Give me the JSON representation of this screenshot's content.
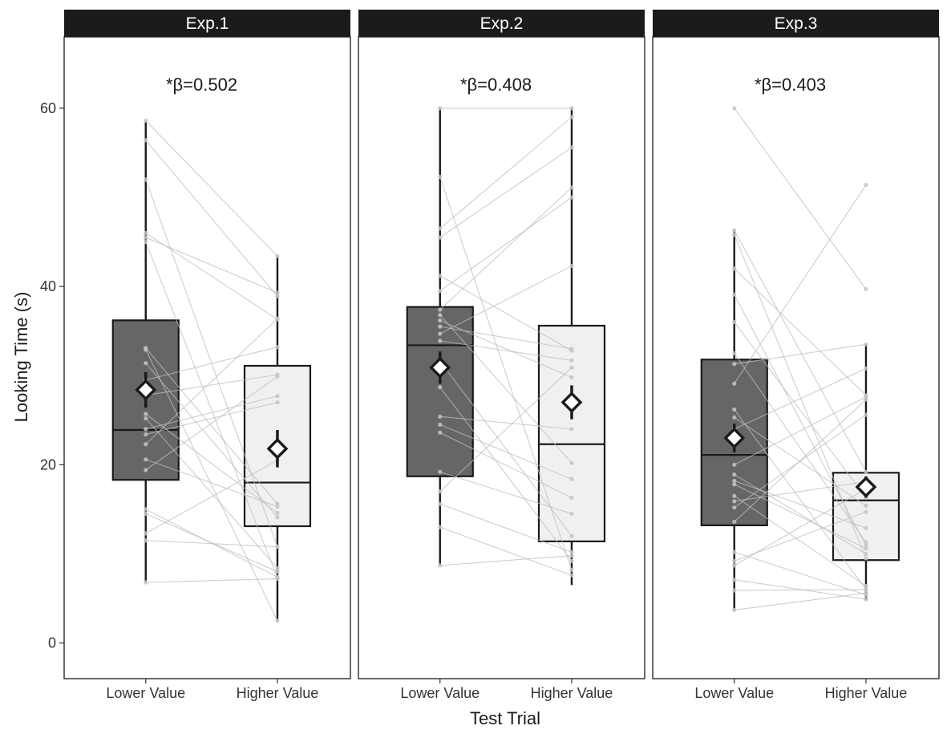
{
  "chart_data": {
    "type": "boxplot",
    "xlabel": "Test Trial",
    "ylabel": "Looking Time (s)",
    "ylim": [
      -4,
      68
    ],
    "yticks": [
      0,
      20,
      40,
      60
    ],
    "categories": [
      "Lower Value",
      "Higher Value"
    ],
    "category_fill": {
      "Lower Value": "#666666",
      "Higher Value": "#f0f0f0"
    },
    "grid": false,
    "legend": "none",
    "panels": [
      {
        "title": "Exp.1",
        "annotation": "*β=0.502",
        "boxes": [
          {
            "category": "Lower Value",
            "min": 6.8,
            "q1": 18.3,
            "median": 23.9,
            "q3": 36.2,
            "max": 58.6,
            "mean": 28.4,
            "se": 2.0
          },
          {
            "category": "Higher Value",
            "min": 2.5,
            "q1": 13.1,
            "median": 18.0,
            "q3": 31.1,
            "max": 43.4,
            "mean": 21.8,
            "se": 2.1
          }
        ],
        "pairs": [
          [
            58.6,
            43.4
          ],
          [
            56.4,
            38.9
          ],
          [
            52.0,
            10.8
          ],
          [
            46.0,
            36.3
          ],
          [
            45.5,
            39.3
          ],
          [
            45.0,
            7.3
          ],
          [
            33.1,
            15.6
          ],
          [
            32.9,
            2.5
          ],
          [
            31.4,
            14.1
          ],
          [
            29.5,
            33.2
          ],
          [
            27.8,
            30.1
          ],
          [
            25.7,
            14.6
          ],
          [
            25.2,
            8.4
          ],
          [
            24.0,
            27.7
          ],
          [
            23.4,
            27.0
          ],
          [
            22.3,
            36.4
          ],
          [
            20.6,
            15.3
          ],
          [
            19.4,
            29.9
          ],
          [
            15.0,
            7.4
          ],
          [
            14.5,
            8.0
          ],
          [
            12.3,
            20.5
          ],
          [
            11.5,
            10.8
          ],
          [
            6.8,
            7.2
          ]
        ]
      },
      {
        "title": "Exp.2",
        "annotation": "*β=0.408",
        "boxes": [
          {
            "category": "Lower Value",
            "min": 8.7,
            "q1": 18.7,
            "median": 33.4,
            "q3": 37.7,
            "max": 60.0,
            "mean": 30.9,
            "se": 1.8
          },
          {
            "category": "Higher Value",
            "min": 6.5,
            "q1": 11.4,
            "median": 22.3,
            "q3": 35.6,
            "max": 60.0,
            "mean": 27.0,
            "se": 1.9
          }
        ],
        "pairs": [
          [
            60.0,
            60.0
          ],
          [
            52.3,
            8.2
          ],
          [
            46.5,
            59.0
          ],
          [
            45.5,
            55.6
          ],
          [
            41.2,
            32.8
          ],
          [
            39.5,
            50.0
          ],
          [
            37.4,
            51.1
          ],
          [
            36.8,
            20.2
          ],
          [
            36.2,
            29.8
          ],
          [
            35.5,
            33.0
          ],
          [
            34.7,
            42.3
          ],
          [
            33.9,
            31.7
          ],
          [
            31.6,
            12.0
          ],
          [
            28.7,
            9.2
          ],
          [
            25.4,
            24.0
          ],
          [
            24.5,
            18.4
          ],
          [
            23.6,
            16.3
          ],
          [
            19.2,
            14.5
          ],
          [
            17.0,
            30.9
          ],
          [
            15.6,
            10.2
          ],
          [
            13.0,
            7.6
          ],
          [
            8.7,
            9.8
          ]
        ]
      },
      {
        "title": "Exp.3",
        "annotation": "*β=0.403",
        "boxes": [
          {
            "category": "Lower Value",
            "min": 3.7,
            "q1": 13.2,
            "median": 21.1,
            "q3": 31.8,
            "max": 46.3,
            "mean": 23.0,
            "se": 1.6
          },
          {
            "category": "Higher Value",
            "min": 4.8,
            "q1": 9.3,
            "median": 16.0,
            "q3": 19.1,
            "max": 33.5,
            "mean": 17.5,
            "se": 1.2
          }
        ],
        "pairs": [
          [
            60.0,
            39.7
          ],
          [
            46.3,
            19.2
          ],
          [
            45.8,
            9.5
          ],
          [
            42.0,
            27.8
          ],
          [
            39.1,
            10.9
          ],
          [
            36.0,
            16.3
          ],
          [
            32.5,
            11.3
          ],
          [
            31.3,
            33.5
          ],
          [
            29.1,
            51.4
          ],
          [
            26.2,
            6.0
          ],
          [
            25.3,
            15.4
          ],
          [
            24.0,
            30.8
          ],
          [
            20.0,
            27.6
          ],
          [
            18.9,
            10.0
          ],
          [
            18.2,
            12.9
          ],
          [
            17.8,
            10.6
          ],
          [
            16.5,
            6.4
          ],
          [
            15.9,
            18.1
          ],
          [
            15.2,
            25.6
          ],
          [
            13.6,
            27.3
          ],
          [
            10.2,
            5.4
          ],
          [
            9.2,
            14.7
          ],
          [
            8.7,
            17.3
          ],
          [
            7.1,
            4.9
          ],
          [
            5.9,
            6.0
          ],
          [
            3.7,
            5.6
          ]
        ]
      }
    ]
  }
}
